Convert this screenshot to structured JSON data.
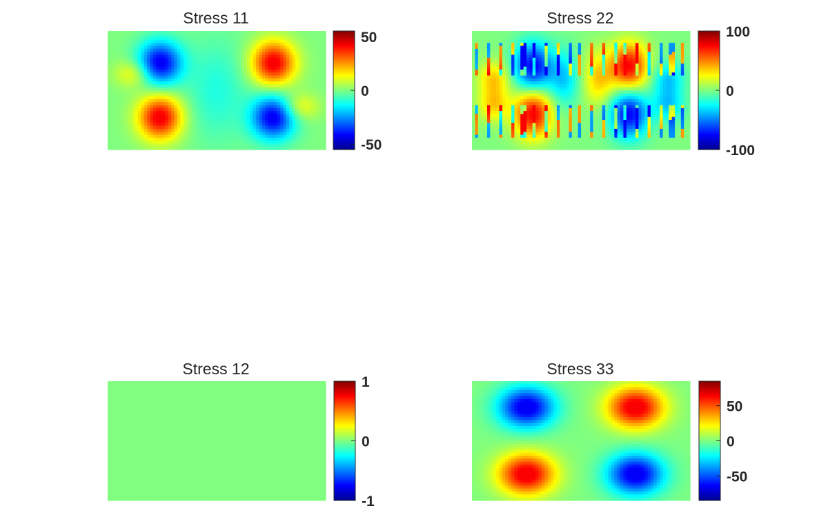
{
  "chart_data": [
    {
      "type": "heatmap",
      "title": "Stress 11",
      "colormap": "jet",
      "pattern": "s11",
      "clim": [
        -55,
        55
      ],
      "colorbar_ticks": [
        {
          "value": 50,
          "label": "50"
        },
        {
          "value": 0,
          "label": "0"
        },
        {
          "value": -50,
          "label": "-50"
        }
      ],
      "xlabel": "",
      "ylabel": ""
    },
    {
      "type": "heatmap",
      "title": "Stress 22",
      "colormap": "jet",
      "pattern": "s22",
      "clim": [
        -100,
        100
      ],
      "colorbar_ticks": [
        {
          "value": 100,
          "label": "100"
        },
        {
          "value": 0,
          "label": "0"
        },
        {
          "value": -100,
          "label": "-100"
        }
      ],
      "xlabel": "",
      "ylabel": ""
    },
    {
      "type": "heatmap",
      "title": "Stress 12",
      "colormap": "jet",
      "pattern": "uniform",
      "uniform_value": 0,
      "clim": [
        -1,
        1
      ],
      "colorbar_ticks": [
        {
          "value": 1,
          "label": "1"
        },
        {
          "value": 0,
          "label": "0"
        },
        {
          "value": -1,
          "label": "-1"
        }
      ],
      "xlabel": "",
      "ylabel": ""
    },
    {
      "type": "heatmap",
      "title": "Stress 33",
      "colormap": "jet",
      "pattern": "s33",
      "clim": [
        -85,
        85
      ],
      "colorbar_ticks": [
        {
          "value": 50,
          "label": "50"
        },
        {
          "value": 0,
          "label": "0"
        },
        {
          "value": -50,
          "label": "-50"
        }
      ],
      "xlabel": "",
      "ylabel": ""
    }
  ]
}
